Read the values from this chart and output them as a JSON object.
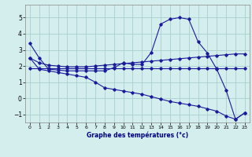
{
  "title": "Graphe des températures (°c)",
  "background_color": "#d4eeed",
  "grid_color": "#aacfcf",
  "line_color": "#1a1a9a",
  "xlim": [
    -0.5,
    23.5
  ],
  "ylim": [
    -1.5,
    5.8
  ],
  "xticks": [
    0,
    1,
    2,
    3,
    4,
    5,
    6,
    7,
    8,
    9,
    10,
    11,
    12,
    13,
    14,
    15,
    16,
    17,
    18,
    19,
    20,
    21,
    22,
    23
  ],
  "yticks": [
    -1,
    0,
    1,
    2,
    3,
    4,
    5
  ],
  "series": [
    {
      "x": [
        0,
        1,
        2,
        3,
        4,
        5,
        6,
        7,
        8,
        9,
        10,
        11,
        12,
        13,
        14,
        15,
        16,
        17,
        18,
        19,
        20,
        21,
        22,
        23
      ],
      "y": [
        3.4,
        2.5,
        1.8,
        1.75,
        1.7,
        1.7,
        1.7,
        1.7,
        1.7,
        1.9,
        2.2,
        2.1,
        2.1,
        2.85,
        4.6,
        4.9,
        5.0,
        4.9,
        3.5,
        2.8,
        1.8,
        0.5,
        -1.3,
        -0.9
      ]
    },
    {
      "x": [
        0,
        1,
        2,
        3,
        4,
        5,
        6,
        7,
        8,
        9,
        10,
        11,
        12,
        13,
        14,
        15,
        16,
        17,
        18,
        19,
        20,
        21,
        22,
        23
      ],
      "y": [
        1.85,
        1.85,
        1.85,
        1.85,
        1.85,
        1.85,
        1.85,
        1.85,
        1.85,
        1.85,
        1.85,
        1.85,
        1.85,
        1.85,
        1.85,
        1.85,
        1.85,
        1.85,
        1.85,
        1.85,
        1.85,
        1.85,
        1.85,
        1.85
      ]
    },
    {
      "x": [
        0,
        1,
        2,
        3,
        4,
        5,
        6,
        7,
        8,
        9,
        10,
        11,
        12,
        13,
        14,
        15,
        16,
        17,
        18,
        19,
        20,
        21,
        22,
        23
      ],
      "y": [
        2.5,
        2.2,
        2.05,
        2.0,
        1.95,
        1.95,
        1.95,
        2.0,
        2.05,
        2.1,
        2.15,
        2.2,
        2.25,
        2.3,
        2.35,
        2.4,
        2.45,
        2.5,
        2.55,
        2.6,
        2.65,
        2.7,
        2.75,
        2.75
      ]
    },
    {
      "x": [
        0,
        1,
        2,
        3,
        4,
        5,
        6,
        7,
        8,
        9,
        10,
        11,
        12,
        13,
        14,
        15,
        16,
        17,
        18,
        19,
        20,
        21,
        22,
        23
      ],
      "y": [
        2.5,
        1.8,
        1.7,
        1.6,
        1.5,
        1.4,
        1.3,
        1.0,
        0.65,
        0.55,
        0.45,
        0.35,
        0.25,
        0.1,
        -0.05,
        -0.2,
        -0.3,
        -0.4,
        -0.5,
        -0.65,
        -0.8,
        -1.1,
        -1.3,
        -0.9
      ]
    }
  ]
}
